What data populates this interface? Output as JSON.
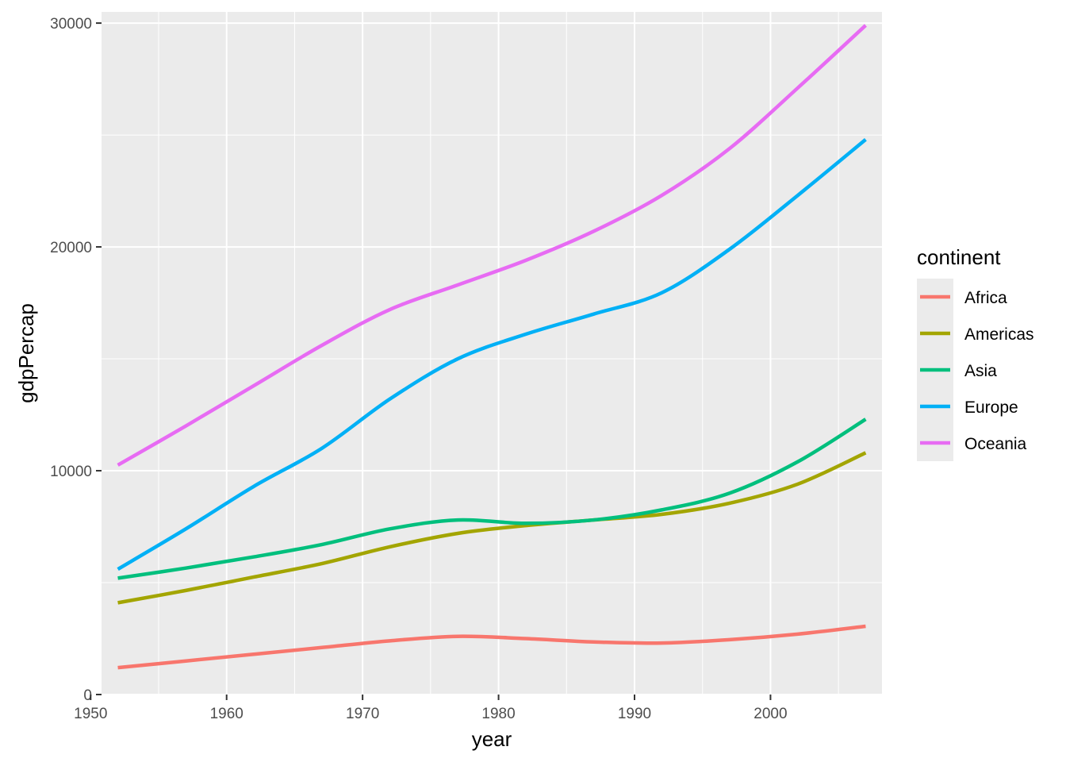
{
  "chart_data": {
    "type": "line",
    "title": "",
    "xlabel": "year",
    "ylabel": "gdpPercap",
    "xlim": [
      1950.8,
      2008.2
    ],
    "ylim": [
      0,
      30500
    ],
    "x_ticks": [
      "1950",
      "1960",
      "1970",
      "1980",
      "1990",
      "2000"
    ],
    "y_ticks": [
      "0",
      "10000",
      "20000",
      "30000"
    ],
    "grid": true,
    "legend": {
      "title": "continent",
      "position": "right"
    },
    "x": [
      1952,
      1957,
      1962,
      1967,
      1972,
      1977,
      1982,
      1987,
      1992,
      1997,
      2002,
      2007
    ],
    "series": [
      {
        "name": "Africa",
        "color": "#F8766D",
        "values": [
          1200,
          1500,
          1800,
          2100,
          2400,
          2600,
          2500,
          2350,
          2300,
          2450,
          2700,
          3050
        ]
      },
      {
        "name": "Americas",
        "color": "#A3A500",
        "values": [
          4100,
          4650,
          5250,
          5850,
          6600,
          7200,
          7550,
          7800,
          8050,
          8550,
          9400,
          10800
        ]
      },
      {
        "name": "Asia",
        "color": "#00BF7D",
        "values": [
          5200,
          5650,
          6150,
          6700,
          7400,
          7800,
          7650,
          7800,
          8250,
          9000,
          10400,
          12300
        ]
      },
      {
        "name": "Europe",
        "color": "#00B0F6",
        "values": [
          5600,
          7400,
          9300,
          11000,
          13200,
          15000,
          16100,
          17000,
          17950,
          19900,
          22300,
          24800
        ]
      },
      {
        "name": "Oceania",
        "color": "#E76BF3",
        "values": [
          10250,
          12000,
          13800,
          15600,
          17200,
          18300,
          19400,
          20700,
          22300,
          24400,
          27100,
          29900
        ]
      }
    ]
  }
}
